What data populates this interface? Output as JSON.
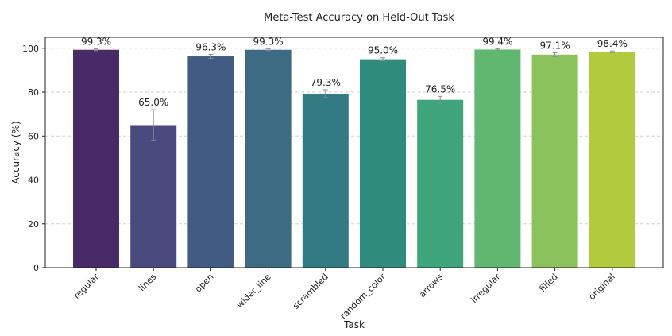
{
  "chart_data": {
    "type": "bar",
    "title": "Meta-Test Accuracy on Held-Out Task",
    "xlabel": "Task",
    "ylabel": "Accuracy (%)",
    "ylim": [
      0,
      105
    ],
    "yticks": [
      0,
      20,
      40,
      60,
      80,
      100
    ],
    "grid": "y-dashed",
    "categories": [
      "regular",
      "lines",
      "open",
      "wider_line",
      "scrambled",
      "random_color",
      "arrows",
      "irregular",
      "filled",
      "original"
    ],
    "values": [
      99.3,
      65.0,
      96.3,
      99.3,
      79.3,
      95.0,
      76.5,
      99.4,
      97.1,
      98.4
    ],
    "errors": [
      0.4,
      7.0,
      0.9,
      0.4,
      1.8,
      0.7,
      1.6,
      0.3,
      0.9,
      0.4
    ],
    "value_labels": [
      "99.3%",
      "65.0%",
      "96.3%",
      "99.3%",
      "79.3%",
      "95.0%",
      "76.5%",
      "99.4%",
      "97.1%",
      "98.4%"
    ],
    "colors": [
      "#482b66",
      "#4b4a7f",
      "#415b83",
      "#3d6b84",
      "#337b82",
      "#2f8b7c",
      "#3ea57c",
      "#60b76f",
      "#8ac35c",
      "#b2ca3e"
    ]
  }
}
